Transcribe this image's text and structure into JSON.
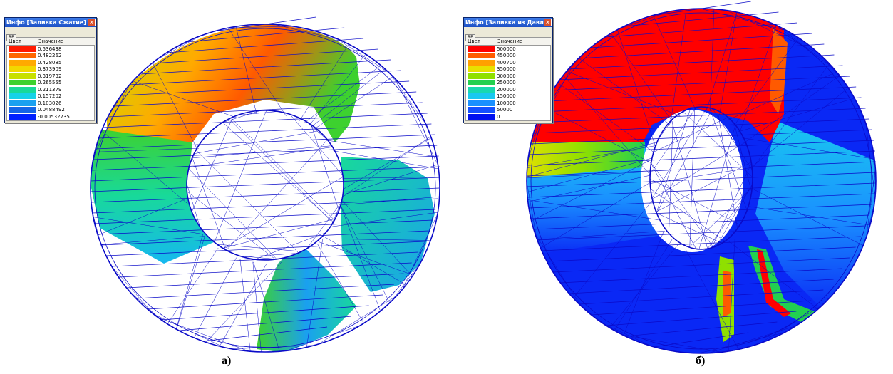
{
  "panels": [
    {
      "id": "a",
      "caption": "а)",
      "legend": {
        "title": "Инфо [Заливка Сжатие]",
        "tool": "RB",
        "col_color": "Цвет",
        "col_value": "Значение",
        "items": [
          {
            "color": "#ff1a00",
            "value": "0.536438"
          },
          {
            "color": "#ff6600",
            "value": "0.482262"
          },
          {
            "color": "#ffaa00",
            "value": "0.428085"
          },
          {
            "color": "#f2d800",
            "value": "0.373909"
          },
          {
            "color": "#c8e000",
            "value": "0.319732"
          },
          {
            "color": "#3dd12f",
            "value": "0.265555"
          },
          {
            "color": "#18d99a",
            "value": "0.211379"
          },
          {
            "color": "#16d2e8",
            "value": "0.157202"
          },
          {
            "color": "#1aa0f0",
            "value": "0.103026"
          },
          {
            "color": "#1565e6",
            "value": "0.0488492"
          },
          {
            "color": "#0020ff",
            "value": "-0.00532735"
          }
        ]
      }
    },
    {
      "id": "b",
      "caption": "б)",
      "legend": {
        "title": "Инфо [Заливка из Давл...",
        "tool": "RB",
        "col_color": "Цвет",
        "col_value": "Значение",
        "items": [
          {
            "color": "#ff0000",
            "value": "500000"
          },
          {
            "color": "#ff5a00",
            "value": "450000"
          },
          {
            "color": "#ffa000",
            "value": "400700"
          },
          {
            "color": "#e8e000",
            "value": "350000"
          },
          {
            "color": "#8fe000",
            "value": "300000"
          },
          {
            "color": "#22d050",
            "value": "250000"
          },
          {
            "color": "#18d8b0",
            "value": "200000"
          },
          {
            "color": "#19c8f0",
            "value": "150000"
          },
          {
            "color": "#1a90ff",
            "value": "100000"
          },
          {
            "color": "#1450ff",
            "value": "50000"
          },
          {
            "color": "#0010f0",
            "value": "0"
          }
        ]
      }
    }
  ],
  "mesh_color": "#0a0ac8"
}
